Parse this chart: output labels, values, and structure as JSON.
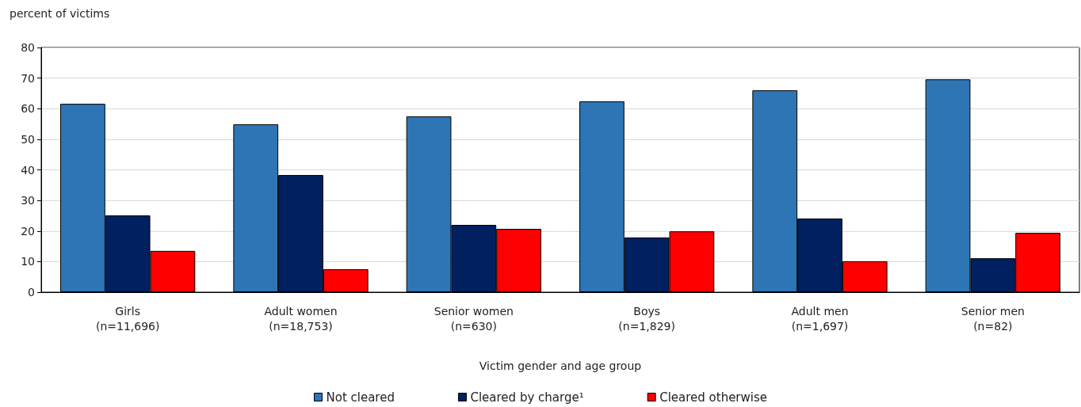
{
  "chart_data": {
    "type": "bar",
    "ylabel": "percent of victims",
    "xlabel": "Victim gender and age group",
    "categories": [
      "Girls\n(n=11,696)",
      "Adult women\n(n=18,753)",
      "Senior women\n(n=630)",
      "Boys\n(n=1,829)",
      "Adult men\n(n=1,697)",
      "Senior men\n(n=82)"
    ],
    "series": [
      {
        "name": "Not cleared",
        "color": "#2e75b6",
        "values": [
          61.6,
          54.9,
          57.5,
          62.4,
          66.0,
          69.6
        ]
      },
      {
        "name": "Cleared by charge¹",
        "color": "#002060",
        "values": [
          25.1,
          38.3,
          22.0,
          17.9,
          24.1,
          11.1
        ]
      },
      {
        "name": "Cleared otherwise",
        "color": "#ff0000",
        "values": [
          13.5,
          7.5,
          20.7,
          19.9,
          10.1,
          19.4
        ]
      }
    ],
    "ylim": [
      0,
      80
    ],
    "yticks": [
      0,
      10,
      20,
      30,
      40,
      50,
      60,
      70,
      80
    ],
    "grid": "y",
    "legend": "bottom"
  }
}
